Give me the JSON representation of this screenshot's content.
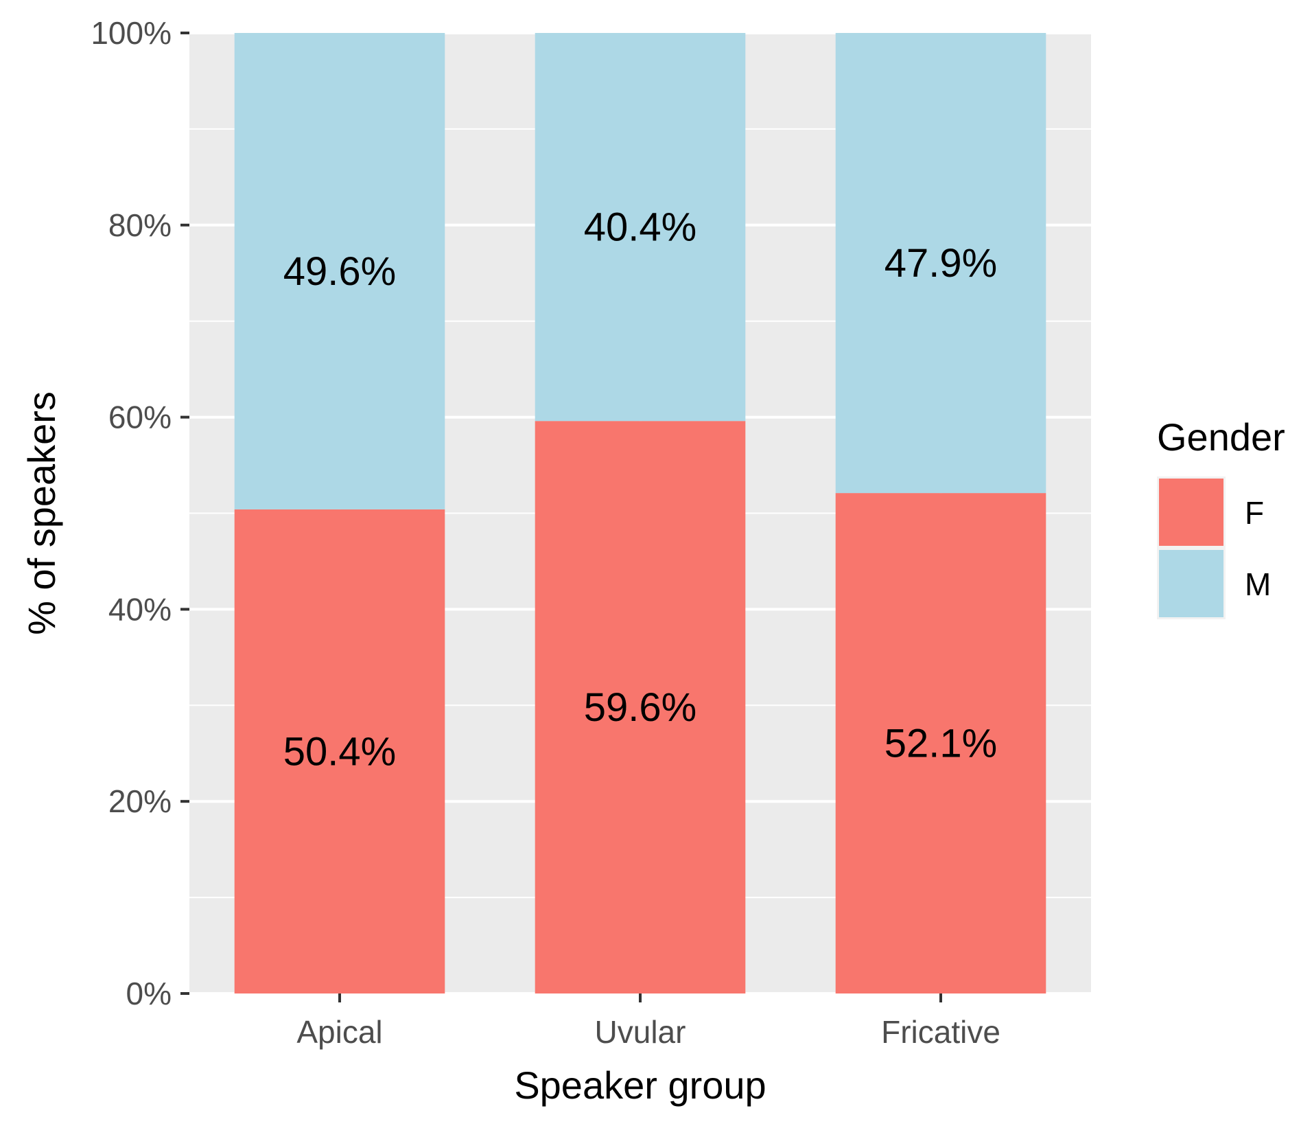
{
  "chart_data": {
    "type": "bar",
    "stacked": true,
    "categories": [
      "Apical",
      "Uvular",
      "Fricative"
    ],
    "series": [
      {
        "name": "F",
        "values": [
          50.4,
          59.6,
          52.1
        ],
        "labels": [
          "50.4%",
          "59.6%",
          "52.1%"
        ],
        "color": "#F8766D"
      },
      {
        "name": "M",
        "values": [
          49.6,
          40.4,
          47.9
        ],
        "labels": [
          "49.6%",
          "40.4%",
          "47.9%"
        ],
        "color": "#ADD8E6"
      }
    ],
    "xlabel": "Speaker group",
    "ylabel": "% of speakers",
    "ylim": [
      0,
      100
    ],
    "yticks": [
      "0%",
      "20%",
      "40%",
      "60%",
      "80%",
      "100%"
    ],
    "legend": {
      "title": "Gender",
      "placement": "right"
    },
    "grid": true,
    "panel_color": "#EBEBEB"
  }
}
